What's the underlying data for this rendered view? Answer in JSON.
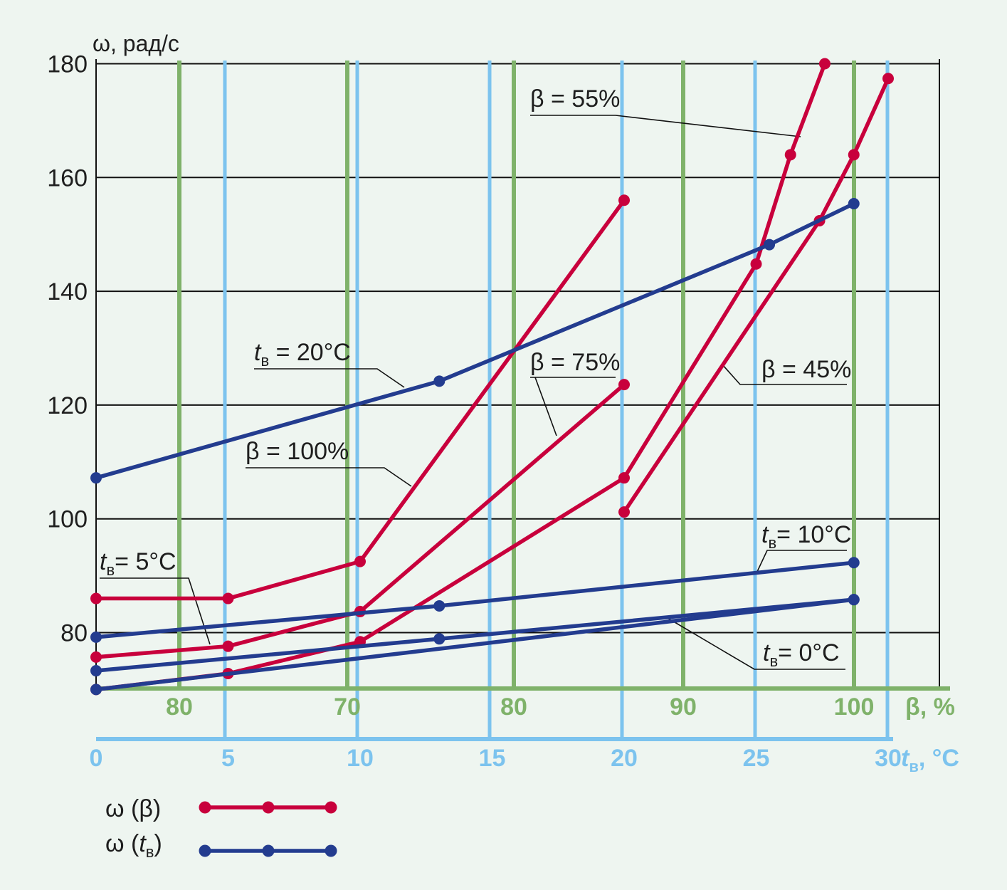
{
  "chart_data": {
    "type": "line",
    "y_axis": {
      "label": "ω, рад/с",
      "ticks": [
        "80",
        "100",
        "120",
        "140",
        "160",
        "180"
      ],
      "tick_values": [
        80,
        100,
        120,
        140,
        160,
        180
      ],
      "range": [
        70,
        180
      ]
    },
    "x_axis_beta": {
      "label": "β, %",
      "ticks": [
        "80",
        "70",
        "80",
        "90",
        "100"
      ]
    },
    "x_axis_t": {
      "label_main": "t",
      "label_sub": "в",
      "label_unit": ", °C",
      "ticks": [
        "0",
        "5",
        "10",
        "15",
        "20",
        "25",
        "30"
      ],
      "tick_values": [
        0,
        5,
        10,
        15,
        20,
        25,
        30
      ],
      "range": [
        0,
        32
      ]
    },
    "series": [
      {
        "group": "omega_beta",
        "label": "β = 100%",
        "points": [
          [
            0,
            86
          ],
          [
            5,
            86
          ],
          [
            10,
            92.5
          ],
          [
            20,
            156
          ]
        ]
      },
      {
        "group": "omega_beta",
        "label": "β = 75%",
        "points": [
          [
            0,
            75.7
          ],
          [
            5,
            77.6
          ],
          [
            10,
            83.7
          ],
          [
            20,
            123.6
          ]
        ]
      },
      {
        "group": "omega_beta",
        "label": "",
        "points": [
          [
            0,
            70
          ],
          [
            5,
            72.8
          ],
          [
            10,
            78.4
          ],
          [
            20,
            107.2
          ],
          [
            25,
            144.8
          ],
          [
            26.3,
            164
          ],
          [
            27.6,
            180
          ]
        ]
      },
      {
        "group": "omega_beta",
        "label": "",
        "points": [
          [
            20,
            101.2
          ],
          [
            27.4,
            152.4
          ],
          [
            28.7,
            164
          ],
          [
            30,
            177.4
          ]
        ]
      },
      {
        "group": "omega_t",
        "label": "tв = 20°C",
        "points": [
          [
            0,
            107.2
          ],
          [
            13,
            124.2
          ],
          [
            25.5,
            148.2
          ],
          [
            28.7,
            155.4
          ]
        ]
      },
      {
        "group": "omega_t",
        "label": "tв = 10°C",
        "points": [
          [
            0,
            79.2
          ],
          [
            13,
            84.7
          ],
          [
            28.7,
            92.3
          ]
        ]
      },
      {
        "group": "omega_t",
        "label": "",
        "points": [
          [
            0,
            73.3
          ],
          [
            13,
            78.9
          ],
          [
            28.7,
            85.8
          ]
        ]
      },
      {
        "group": "omega_t",
        "label": "",
        "points": [
          [
            0,
            70
          ],
          [
            28.7,
            85.8
          ]
        ]
      }
    ],
    "annotations": [
      {
        "text": "β = 55%"
      },
      {
        "text": "β = 75%"
      },
      {
        "text": "β = 100%"
      },
      {
        "text": "β = 45%"
      },
      {
        "main": "t",
        "sub": "в",
        "rest": " = 20°C"
      },
      {
        "main": "t",
        "sub": "в",
        "rest": "= 5°C"
      },
      {
        "main": "t",
        "sub": "в",
        "rest": "= 10°C"
      },
      {
        "main": "t",
        "sub": "в",
        "rest": "= 0°C"
      }
    ],
    "legend": [
      {
        "text_pre": "ω (β)",
        "italic": "",
        "sub": "",
        "text_post": "",
        "color": "#c8003c"
      },
      {
        "text_pre": "ω (",
        "italic": "t",
        "sub": "в",
        "text_post": ")",
        "color": "#233c8f"
      }
    ],
    "colors": {
      "red": "#c8003c",
      "blue": "#233c8f",
      "green_grid": "#7fb26a",
      "blue_grid": "#7cc3ee",
      "background": "#eef5f0"
    },
    "grid": true
  }
}
